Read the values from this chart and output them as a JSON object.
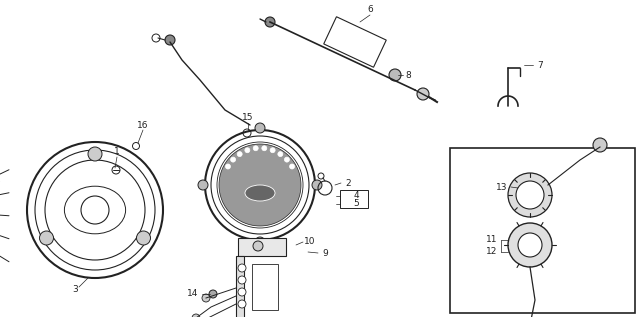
{
  "bg_color": "#ffffff",
  "line_color": "#222222",
  "fig_width": 6.4,
  "fig_height": 3.17,
  "dpi": 100
}
